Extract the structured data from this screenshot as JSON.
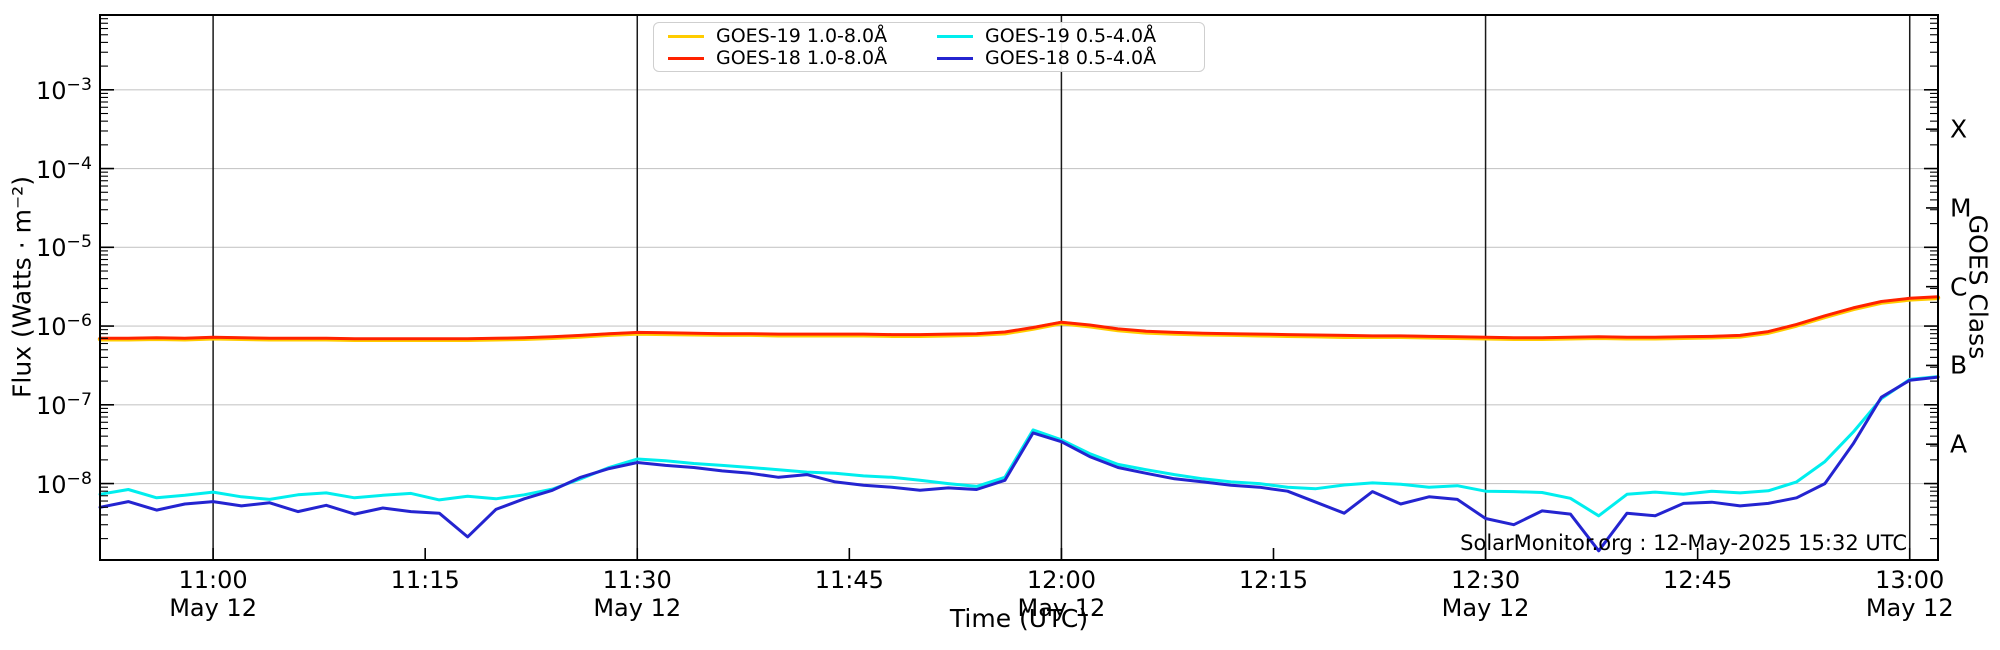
{
  "annotation": "SolarMonitor.org : 12-May-2025 15:32 UTC",
  "axes": {
    "x_label": "Time (UTC)",
    "y_label_left": "Flux (Watts · m⁻²)",
    "y_label_right": "GOES Class"
  },
  "chart_data": {
    "type": "line",
    "title": "",
    "legend_position": "top-center",
    "grid": {
      "horizontal": "light-gray at each flux decade",
      "vertical": "black at each 30 minutes"
    },
    "x_axis": {
      "label": "Time (UTC)",
      "unit": "minutes of day, May 12 2025",
      "xlim_minutes": [
        652,
        782
      ],
      "gridline_minutes": [
        660,
        690,
        720,
        750,
        780
      ],
      "ticks": [
        {
          "m": 660,
          "label": "11:00",
          "date": "May 12"
        },
        {
          "m": 675,
          "label": "11:15"
        },
        {
          "m": 690,
          "label": "11:30",
          "date": "May 12"
        },
        {
          "m": 705,
          "label": "11:45"
        },
        {
          "m": 720,
          "label": "12:00",
          "date": "May 12"
        },
        {
          "m": 735,
          "label": "12:15"
        },
        {
          "m": 750,
          "label": "12:30",
          "date": "May 12"
        },
        {
          "m": 765,
          "label": "12:45"
        },
        {
          "m": 780,
          "label": "13:00",
          "date": "May 12"
        }
      ]
    },
    "y_axis": {
      "label": "Flux (Watts · m⁻²)",
      "scale": "log",
      "ylim": [
        1.07e-09,
        0.00891
      ],
      "decade_labels_exponents": [
        -3,
        -4,
        -5,
        -6,
        -7,
        -8
      ]
    },
    "right_axis": {
      "label": "GOES Class",
      "classes": [
        {
          "label": "X",
          "log_center": -3.5
        },
        {
          "label": "M",
          "log_center": -4.5
        },
        {
          "label": "C",
          "log_center": -5.5
        },
        {
          "label": "B",
          "log_center": -6.5
        },
        {
          "label": "A",
          "log_center": -7.5
        }
      ]
    },
    "series": [
      {
        "name": "GOES-19 1.0-8.0Å",
        "color": "#ffcc00",
        "t0_min": 652,
        "dt_min": 2,
        "values": [
          6.8e-07,
          6.8e-07,
          6.9e-07,
          6.8e-07,
          7e-07,
          6.9e-07,
          6.8e-07,
          6.8e-07,
          6.8e-07,
          6.7e-07,
          6.7e-07,
          6.7e-07,
          6.7e-07,
          6.7e-07,
          6.8e-07,
          6.9e-07,
          7.1e-07,
          7.4e-07,
          7.8e-07,
          8.05e-07,
          7.95e-07,
          7.85e-07,
          7.8e-07,
          7.8e-07,
          7.65e-07,
          7.65e-07,
          7.65e-07,
          7.65e-07,
          7.55e-07,
          7.55e-07,
          7.65e-07,
          7.8e-07,
          8.15e-07,
          9.3e-07,
          1.09e-06,
          1e-06,
          8.9e-07,
          8.3e-07,
          8.05e-07,
          7.85e-07,
          7.8e-07,
          7.65e-07,
          7.55e-07,
          7.45e-07,
          7.3e-07,
          7.3e-07,
          7.3e-07,
          7.2e-07,
          7.1e-07,
          7e-07,
          6.9e-07,
          6.9e-07,
          7e-07,
          7.1e-07,
          7e-07,
          7e-07,
          7.1e-07,
          7.2e-07,
          7.4e-07,
          8.25e-07,
          1.02e-06,
          1.31e-06,
          1.65e-06,
          1.99e-06,
          2.18e-06,
          2.28e-06
        ]
      },
      {
        "name": "GOES-18 1.0-8.0Å",
        "color": "#ff2200",
        "t0_min": 652,
        "dt_min": 2,
        "values": [
          7e-07,
          7e-07,
          7.1e-07,
          7e-07,
          7.2e-07,
          7.1e-07,
          7e-07,
          7e-07,
          7e-07,
          6.9e-07,
          6.9e-07,
          6.9e-07,
          6.9e-07,
          6.9e-07,
          7e-07,
          7.1e-07,
          7.3e-07,
          7.6e-07,
          8e-07,
          8.3e-07,
          8.2e-07,
          8.1e-07,
          8e-07,
          8e-07,
          7.9e-07,
          7.9e-07,
          7.9e-07,
          7.9e-07,
          7.8e-07,
          7.8e-07,
          7.9e-07,
          8e-07,
          8.4e-07,
          9.6e-07,
          1.12e-06,
          1.03e-06,
          9.2e-07,
          8.6e-07,
          8.3e-07,
          8.1e-07,
          8e-07,
          7.9e-07,
          7.8e-07,
          7.7e-07,
          7.6e-07,
          7.5e-07,
          7.5e-07,
          7.4e-07,
          7.3e-07,
          7.2e-07,
          7.1e-07,
          7.1e-07,
          7.2e-07,
          7.3e-07,
          7.2e-07,
          7.2e-07,
          7.3e-07,
          7.4e-07,
          7.6e-07,
          8.5e-07,
          1.05e-06,
          1.35e-06,
          1.7e-06,
          2.05e-06,
          2.25e-06,
          2.35e-06
        ]
      },
      {
        "name": "GOES-19 0.5-4.0Å",
        "color": "#00eeee",
        "t0_min": 652,
        "dt_min": 2,
        "values": [
          7.3e-09,
          8.4e-09,
          6.6e-09,
          7.1e-09,
          7.8e-09,
          6.8e-09,
          6.3e-09,
          7.2e-09,
          7.6e-09,
          6.6e-09,
          7.1e-09,
          7.5e-09,
          6.2e-09,
          6.9e-09,
          6.4e-09,
          7.2e-09,
          8.5e-09,
          1.15e-08,
          1.6e-08,
          2.05e-08,
          1.95e-08,
          1.8e-08,
          1.7e-08,
          1.6e-08,
          1.5e-08,
          1.4e-08,
          1.35e-08,
          1.25e-08,
          1.2e-08,
          1.1e-08,
          1e-08,
          9.2e-09,
          1.2e-08,
          4.8e-08,
          3.6e-08,
          2.4e-08,
          1.75e-08,
          1.5e-08,
          1.3e-08,
          1.15e-08,
          1.05e-08,
          1e-08,
          9e-09,
          8.6e-09,
          9.6e-09,
          1.02e-08,
          9.8e-09,
          9e-09,
          9.4e-09,
          8e-09,
          7.9e-09,
          7.7e-09,
          6.5e-09,
          3.9e-09,
          7.3e-09,
          7.8e-09,
          7.3e-09,
          8e-09,
          7.6e-09,
          8.1e-09,
          1.05e-08,
          1.9e-08,
          4.5e-08,
          1.2e-07,
          2.1e-07,
          2.28e-07
        ]
      },
      {
        "name": "GOES-18 0.5-4.0Å",
        "color": "#2424d0",
        "t0_min": 652,
        "dt_min": 2,
        "values": [
          5e-09,
          5.9e-09,
          4.6e-09,
          5.5e-09,
          5.9e-09,
          5.2e-09,
          5.7e-09,
          4.4e-09,
          5.3e-09,
          4.1e-09,
          4.9e-09,
          4.4e-09,
          4.2e-09,
          2.1e-09,
          4.7e-09,
          6.4e-09,
          8.2e-09,
          1.2e-08,
          1.55e-08,
          1.85e-08,
          1.7e-08,
          1.6e-08,
          1.45e-08,
          1.35e-08,
          1.2e-08,
          1.3e-08,
          1.05e-08,
          9.5e-09,
          9e-09,
          8.2e-09,
          8.8e-09,
          8.4e-09,
          1.1e-08,
          4.4e-08,
          3.4e-08,
          2.2e-08,
          1.6e-08,
          1.35e-08,
          1.15e-08,
          1.05e-08,
          9.5e-09,
          9e-09,
          8e-09,
          5.8e-09,
          4.2e-09,
          7.9e-09,
          5.5e-09,
          6.8e-09,
          6.3e-09,
          3.6e-09,
          3e-09,
          4.5e-09,
          4.1e-09,
          1.4e-09,
          4.2e-09,
          3.9e-09,
          5.6e-09,
          5.8e-09,
          5.2e-09,
          5.6e-09,
          6.6e-09,
          1e-08,
          3.2e-08,
          1.25e-07,
          2.05e-07,
          2.25e-07
        ]
      }
    ]
  }
}
